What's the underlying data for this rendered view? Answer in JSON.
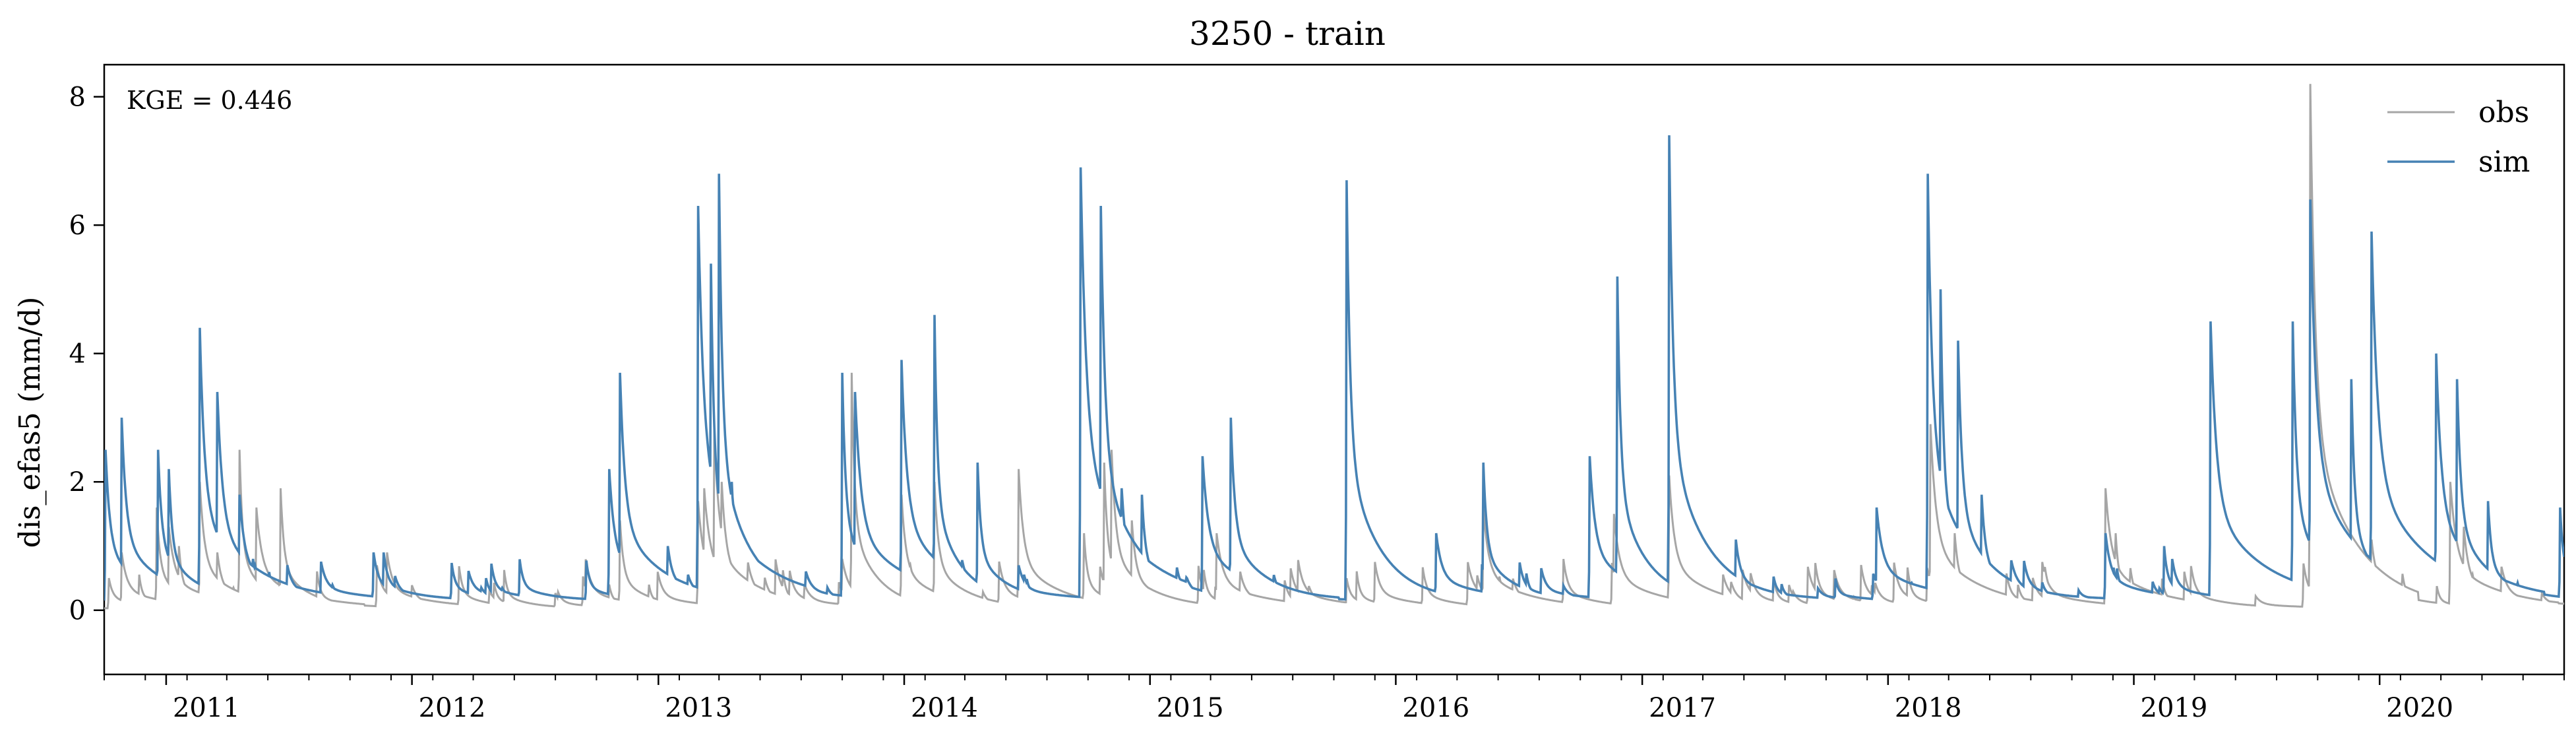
{
  "chart_data": {
    "type": "line",
    "title": "3250 - train",
    "xlabel": "",
    "ylabel": "dis_efas5 (mm/d)",
    "x_range": [
      "2010-10-01",
      "2020-10-01"
    ],
    "ylim": [
      -1,
      8.5
    ],
    "y_ticks": [
      0,
      2,
      4,
      6,
      8
    ],
    "x_ticks": [
      "2011",
      "2012",
      "2013",
      "2014",
      "2015",
      "2016",
      "2017",
      "2018",
      "2019",
      "2020"
    ],
    "grid": false,
    "legend_position": "top-right",
    "annotation": "KGE = 0.446",
    "series": [
      {
        "name": "obs",
        "color": "#a6a6a6",
        "baseline": 0.03,
        "peaks": [
          [
            "2010-10-08",
            0.5
          ],
          [
            "2010-10-27",
            0.9
          ],
          [
            "2010-12-18",
            1.6
          ],
          [
            "2011-01-05",
            1.3
          ],
          [
            "2011-01-20",
            1.0
          ],
          [
            "2011-02-20",
            2.0
          ],
          [
            "2011-03-18",
            0.9
          ],
          [
            "2011-04-20",
            2.5
          ],
          [
            "2011-05-15",
            1.6
          ],
          [
            "2011-06-20",
            1.9
          ],
          [
            "2011-11-10",
            0.7
          ],
          [
            "2011-11-25",
            0.9
          ],
          [
            "2012-04-25",
            0.3
          ],
          [
            "2012-10-20",
            0.4
          ],
          [
            "2012-11-05",
            1.4
          ],
          [
            "2013-03-01",
            1.7
          ],
          [
            "2013-03-10",
            1.9
          ],
          [
            "2013-03-25",
            2.8
          ],
          [
            "2013-04-05",
            2.0
          ],
          [
            "2013-10-01",
            0.8
          ],
          [
            "2013-10-15",
            3.7
          ],
          [
            "2013-12-28",
            1.8
          ],
          [
            "2014-02-15",
            2.0
          ],
          [
            "2014-06-20",
            2.2
          ],
          [
            "2014-09-25",
            1.2
          ],
          [
            "2014-10-25",
            2.3
          ],
          [
            "2014-11-05",
            2.5
          ],
          [
            "2014-12-05",
            1.4
          ],
          [
            "2015-04-10",
            1.2
          ],
          [
            "2015-10-20",
            0.5
          ],
          [
            "2016-05-10",
            1.6
          ],
          [
            "2016-11-20",
            1.5
          ],
          [
            "2017-02-10",
            2.1
          ],
          [
            "2018-03-05",
            2.9
          ],
          [
            "2018-04-10",
            1.2
          ],
          [
            "2018-11-20",
            1.9
          ],
          [
            "2018-12-05",
            1.2
          ],
          [
            "2019-09-20",
            8.2
          ],
          [
            "2019-12-20",
            1.1
          ],
          [
            "2020-04-15",
            2.0
          ],
          [
            "2020-05-05",
            1.3
          ]
        ]
      },
      {
        "name": "sim",
        "color": "#4682b4",
        "baseline": 0.15,
        "peaks": [
          [
            "2010-10-03",
            2.5
          ],
          [
            "2010-10-27",
            3.0
          ],
          [
            "2010-12-20",
            2.5
          ],
          [
            "2011-01-05",
            2.2
          ],
          [
            "2011-02-20",
            4.4
          ],
          [
            "2011-03-18",
            3.4
          ],
          [
            "2011-04-20",
            1.8
          ],
          [
            "2011-05-10",
            0.8
          ],
          [
            "2011-11-05",
            0.9
          ],
          [
            "2011-11-20",
            0.9
          ],
          [
            "2012-04-20",
            0.5
          ],
          [
            "2012-10-20",
            2.2
          ],
          [
            "2012-11-05",
            3.7
          ],
          [
            "2013-01-15",
            1.0
          ],
          [
            "2013-03-01",
            6.3
          ],
          [
            "2013-03-20",
            5.4
          ],
          [
            "2013-04-01",
            6.8
          ],
          [
            "2013-04-20",
            2.0
          ],
          [
            "2013-10-01",
            3.7
          ],
          [
            "2013-10-20",
            3.4
          ],
          [
            "2013-12-28",
            3.9
          ],
          [
            "2014-02-15",
            4.6
          ],
          [
            "2014-04-20",
            2.3
          ],
          [
            "2014-06-20",
            0.7
          ],
          [
            "2014-09-20",
            6.9
          ],
          [
            "2014-10-20",
            6.3
          ],
          [
            "2014-11-20",
            1.9
          ],
          [
            "2014-12-20",
            1.8
          ],
          [
            "2015-03-20",
            2.4
          ],
          [
            "2015-05-01",
            3.0
          ],
          [
            "2015-10-20",
            6.7
          ],
          [
            "2015-12-05",
            1.0
          ],
          [
            "2016-03-01",
            1.2
          ],
          [
            "2016-05-10",
            2.3
          ],
          [
            "2016-10-15",
            2.4
          ],
          [
            "2016-11-25",
            5.2
          ],
          [
            "2017-02-10",
            7.4
          ],
          [
            "2017-05-20",
            1.1
          ],
          [
            "2017-12-15",
            1.6
          ],
          [
            "2018-03-01",
            6.8
          ],
          [
            "2018-03-20",
            5.0
          ],
          [
            "2018-04-15",
            4.2
          ],
          [
            "2018-05-20",
            1.8
          ],
          [
            "2018-11-20",
            1.2
          ],
          [
            "2019-02-15",
            1.0
          ],
          [
            "2019-04-25",
            4.5
          ],
          [
            "2019-08-25",
            4.5
          ],
          [
            "2019-09-20",
            6.4
          ],
          [
            "2019-11-20",
            3.6
          ],
          [
            "2019-12-20",
            5.9
          ],
          [
            "2020-03-25",
            4.0
          ],
          [
            "2020-04-25",
            3.6
          ],
          [
            "2020-06-10",
            1.7
          ],
          [
            "2020-09-25",
            1.6
          ]
        ]
      }
    ]
  }
}
